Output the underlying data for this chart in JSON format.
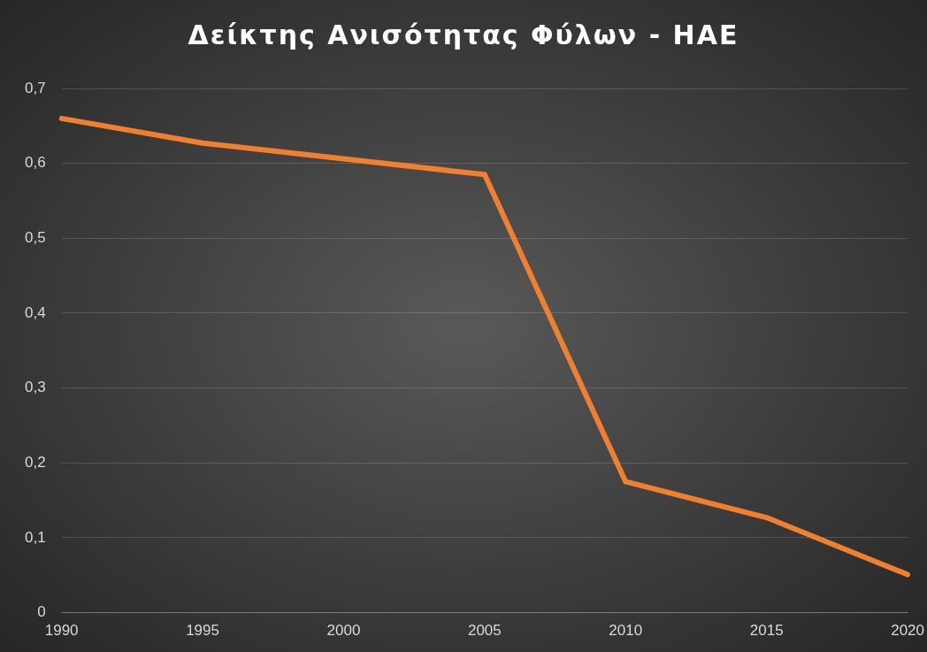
{
  "chart_data": {
    "type": "line",
    "title": "Δείκτης Ανισότητας Φύλων - ΗΑΕ",
    "categories": [
      "1990",
      "1995",
      "2000",
      "2005",
      "2010",
      "2015",
      "2020"
    ],
    "series": [
      {
        "color": "#f08030",
        "values": [
          0.66,
          0.627,
          0.606,
          0.585,
          0.175,
          0.127,
          0.051
        ]
      }
    ],
    "ylim": [
      0,
      0.7
    ],
    "yticks": [
      {
        "value": 0,
        "label": "0"
      },
      {
        "value": 0.1,
        "label": "0,1"
      },
      {
        "value": 0.2,
        "label": "0,2"
      },
      {
        "value": 0.3,
        "label": "0,3"
      },
      {
        "value": 0.4,
        "label": "0,4"
      },
      {
        "value": 0.5,
        "label": "0,5"
      },
      {
        "value": 0.6,
        "label": "0,6"
      },
      {
        "value": 0.7,
        "label": "0,7"
      }
    ],
    "grid": "y",
    "legend": false,
    "marker": "none",
    "line_style": "solid"
  }
}
